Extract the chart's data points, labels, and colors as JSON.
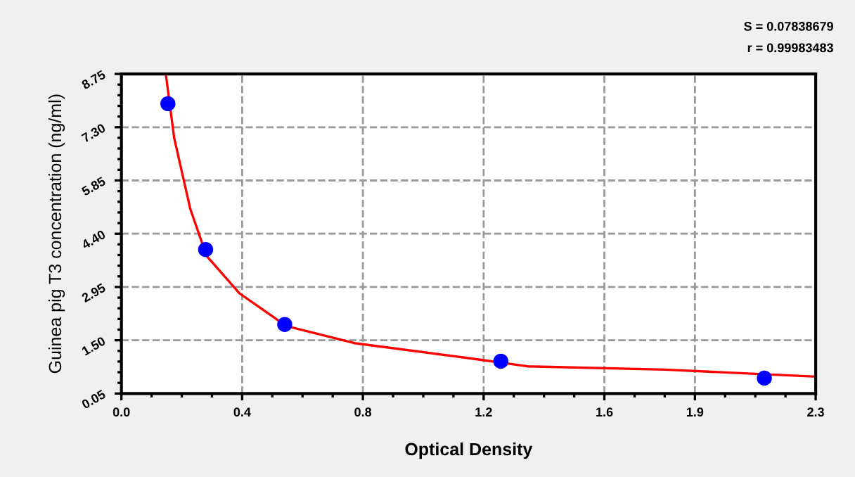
{
  "chart_data": {
    "type": "scatter",
    "xlabel": "Optical Density",
    "ylabel": "Guinea pig T3 concentration (ng/ml)",
    "annotations": [
      "S = 0.07838679",
      "r = 0.99983483"
    ],
    "xlim": [
      0,
      2.3
    ],
    "ylim": [
      0.05,
      8.75
    ],
    "xticks": [
      {
        "value": 0,
        "label": "0.0"
      },
      0.4,
      0.8,
      1.2,
      1.6,
      1.9,
      2.3
    ],
    "yticks": [
      {
        "value": 0.05,
        "label": "0.05"
      },
      {
        "value": 1.5,
        "label": "1.50"
      },
      {
        "value": 2.95,
        "label": "2.95"
      },
      {
        "value": 4.4,
        "label": "4.40"
      },
      {
        "value": 5.85,
        "label": "5.85"
      },
      {
        "value": 7.3,
        "label": "7.30"
      },
      {
        "value": 8.75,
        "label": "8.75"
      }
    ],
    "grid": true,
    "marker": "circle",
    "series": [
      {
        "color": "#0000ff",
        "x": [
          0.154,
          0.279,
          0.541,
          1.257,
          2.13
        ],
        "values": [
          7.94,
          3.97,
          1.93,
          0.93,
          0.47
        ]
      },
      {
        "type": "line",
        "marker": "none",
        "color": "#ff0000",
        "x": [
          0.147,
          0.175,
          0.228,
          0.282,
          0.391,
          0.546,
          0.774,
          1.162,
          1.345,
          1.8,
          2.3
        ],
        "values": [
          8.75,
          7.0,
          5.08,
          3.8,
          2.78,
          1.89,
          1.42,
          1.0,
          0.79,
          0.7,
          0.51
        ]
      }
    ]
  }
}
